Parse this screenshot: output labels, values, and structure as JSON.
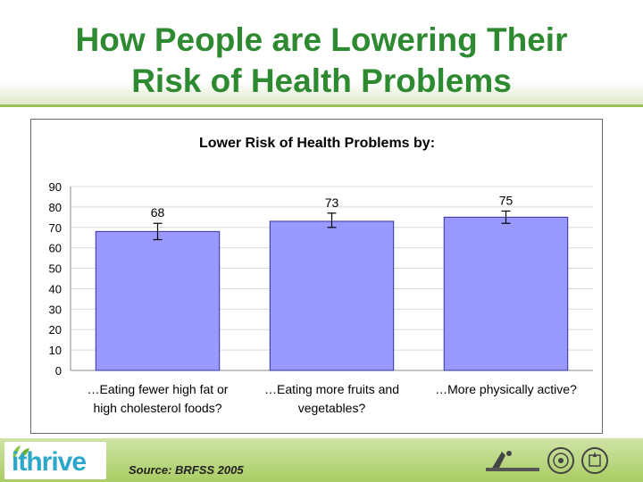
{
  "slide": {
    "title_line1": "How People are Lowering Their",
    "title_line2": "Risk of Health Problems"
  },
  "footer": {
    "logo_text": "ithrive",
    "source_label": "Source: BRFSS 2005",
    "brand_colors": {
      "green": "#8cc63f",
      "blue": "#2aa7c9",
      "footer": "#a9cd63"
    }
  },
  "chart_data": {
    "type": "bar",
    "title": "Lower Risk of Health Problems by:",
    "categories": [
      [
        "…Eating fewer high fat or",
        "high cholesterol foods?"
      ],
      [
        "…Eating more fruits and",
        "vegetables?"
      ],
      [
        "…More physically active?"
      ]
    ],
    "values": [
      68,
      73,
      75
    ],
    "data_labels": [
      "68",
      "73",
      "75"
    ],
    "error_bars": [
      [
        64,
        72
      ],
      [
        70,
        77
      ],
      [
        72,
        78
      ]
    ],
    "ylim": [
      0,
      90
    ],
    "yticks": [
      0,
      10,
      20,
      30,
      40,
      50,
      60,
      70,
      80,
      90
    ],
    "grid": true,
    "bar_color": "#9999ff",
    "bar_edge": "#333399"
  }
}
